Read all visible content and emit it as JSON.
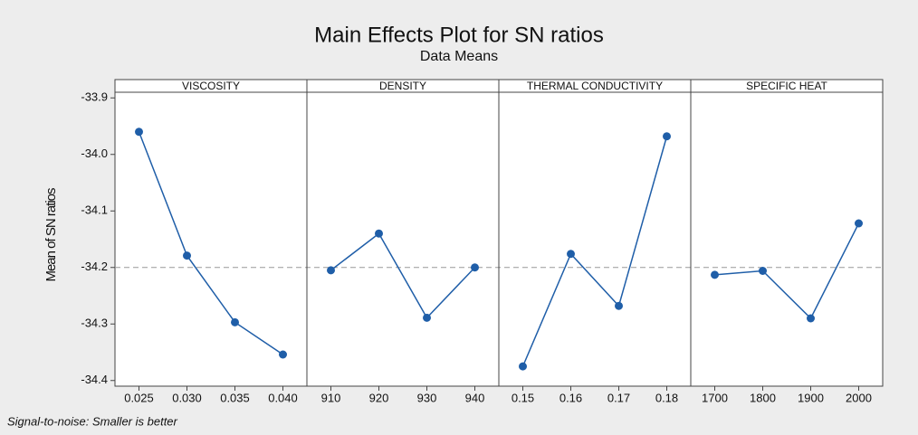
{
  "chart_data": {
    "type": "line",
    "title": "Main Effects Plot for SN ratios",
    "subtitle": "Data Means",
    "ylabel": "Mean of SN ratios",
    "footnote": "Signal-to-noise: Smaller is better",
    "color": "#1f5ea8",
    "reference_line": -34.2,
    "ylim": [
      -34.41,
      -33.89
    ],
    "yticks": [
      -33.9,
      {
        "value": -34.0,
        "label": "-34.0"
      },
      -34.1,
      -34.2,
      -34.3,
      -34.4
    ],
    "panels": [
      {
        "title": "VISCOSITY",
        "categories": [
          "0.025",
          "0.030",
          "0.035",
          "0.040"
        ],
        "values": [
          -33.96,
          -34.179,
          -34.297,
          -34.354
        ]
      },
      {
        "title": "DENSITY",
        "categories": [
          "910",
          "920",
          "930",
          "940"
        ],
        "values": [
          -34.205,
          -34.14,
          -34.289,
          -34.2
        ]
      },
      {
        "title": "THERMAL CONDUCTIVITY",
        "categories": [
          "0.15",
          "0.16",
          "0.17",
          "0.18"
        ],
        "values": [
          -34.375,
          -34.176,
          -34.268,
          -33.968
        ]
      },
      {
        "title": "SPECIFIC HEAT",
        "categories": [
          "1700",
          "1800",
          "1900",
          "2000"
        ],
        "values": [
          -34.213,
          -34.206,
          -34.29,
          -34.122
        ]
      }
    ]
  }
}
